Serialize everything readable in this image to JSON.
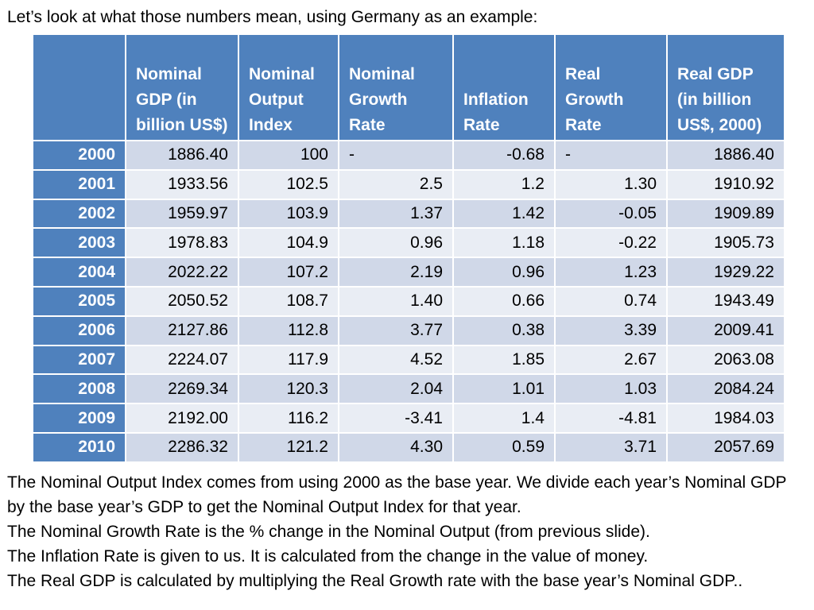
{
  "intro": "Let’s look at what those numbers mean, using Germany as an example:",
  "table": {
    "headers": [
      "",
      "Nominal GDP (in billion US$)",
      "Nominal Output Index",
      "Nominal Growth Rate",
      "Inflation Rate",
      "Real Growth Rate",
      "Real GDP (in billion US$, 2000)"
    ],
    "rows": [
      {
        "year": "2000",
        "nominal_gdp": "1886.40",
        "index": "100",
        "nominal_growth": "-",
        "inflation": "-0.68",
        "real_growth": "-",
        "real_gdp": "1886.40"
      },
      {
        "year": "2001",
        "nominal_gdp": "1933.56",
        "index": "102.5",
        "nominal_growth": "2.5",
        "inflation": "1.2",
        "real_growth": "1.30",
        "real_gdp": "1910.92"
      },
      {
        "year": "2002",
        "nominal_gdp": "1959.97",
        "index": "103.9",
        "nominal_growth": "1.37",
        "inflation": "1.42",
        "real_growth": "-0.05",
        "real_gdp": "1909.89"
      },
      {
        "year": "2003",
        "nominal_gdp": "1978.83",
        "index": "104.9",
        "nominal_growth": "0.96",
        "inflation": "1.18",
        "real_growth": "-0.22",
        "real_gdp": "1905.73"
      },
      {
        "year": "2004",
        "nominal_gdp": "2022.22",
        "index": "107.2",
        "nominal_growth": "2.19",
        "inflation": "0.96",
        "real_growth": "1.23",
        "real_gdp": "1929.22"
      },
      {
        "year": "2005",
        "nominal_gdp": "2050.52",
        "index": "108.7",
        "nominal_growth": "1.40",
        "inflation": "0.66",
        "real_growth": "0.74",
        "real_gdp": "1943.49"
      },
      {
        "year": "2006",
        "nominal_gdp": "2127.86",
        "index": "112.8",
        "nominal_growth": "3.77",
        "inflation": "0.38",
        "real_growth": "3.39",
        "real_gdp": "2009.41"
      },
      {
        "year": "2007",
        "nominal_gdp": "2224.07",
        "index": "117.9",
        "nominal_growth": "4.52",
        "inflation": "1.85",
        "real_growth": "2.67",
        "real_gdp": "2063.08"
      },
      {
        "year": "2008",
        "nominal_gdp": "2269.34",
        "index": "120.3",
        "nominal_growth": "2.04",
        "inflation": "1.01",
        "real_growth": "1.03",
        "real_gdp": "2084.24"
      },
      {
        "year": "2009",
        "nominal_gdp": "2192.00",
        "index": "116.2",
        "nominal_growth": "-3.41",
        "inflation": "1.4",
        "real_growth": "-4.81",
        "real_gdp": "1984.03"
      },
      {
        "year": "2010",
        "nominal_gdp": "2286.32",
        "index": "121.2",
        "nominal_growth": "4.30",
        "inflation": "0.59",
        "real_growth": "3.71",
        "real_gdp": "2057.69"
      }
    ]
  },
  "notes": [
    "The Nominal Output Index comes from using 2000 as the base year.  We divide each year’s Nominal GDP by the base year’s GDP  to get the Nominal Output Index for that year.",
    "The Nominal Growth Rate is the % change in the Nominal Output (from previous slide).",
    "The Inflation Rate is given to us. It is calculated from the change in the value of money.",
    "The Real GDP is calculated by multiplying the Real Growth rate with the base year’s Nominal GDP.."
  ],
  "colors": {
    "header_bg": "#4f81bd",
    "row_odd_bg": "#d0d8e8",
    "row_even_bg": "#e9edf4",
    "header_text": "#ffffff"
  }
}
